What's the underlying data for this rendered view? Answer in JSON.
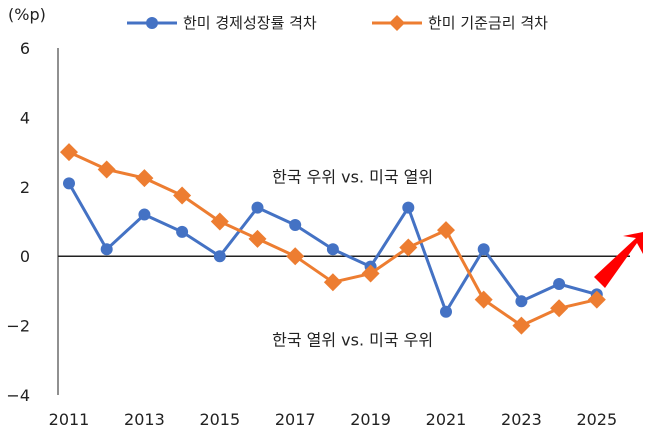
{
  "chart_data": {
    "type": "line",
    "y_unit_label": "(%p)",
    "ylim": [
      -4,
      6
    ],
    "yticks": [
      -4,
      -2,
      0,
      2,
      4,
      6
    ],
    "ytick_labels": [
      "−4",
      "−2",
      "0",
      "2",
      "4",
      "6"
    ],
    "xlim": [
      2011,
      2026
    ],
    "xticks": [
      2011,
      2013,
      2015,
      2017,
      2019,
      2021,
      2023,
      2025
    ],
    "xtick_labels": [
      "2011",
      "2013",
      "2015",
      "2017",
      "2019",
      "2021",
      "2023",
      "2025"
    ],
    "legend_position": "top",
    "series": [
      {
        "name": "한미 경제성장률 격차",
        "color": "#4472C4",
        "marker": "circle",
        "x": [
          2011,
          2012,
          2013,
          2014,
          2015,
          2016,
          2017,
          2018,
          2019,
          2020,
          2021,
          2022,
          2023,
          2024,
          2025
        ],
        "y": [
          2.1,
          0.2,
          1.2,
          0.7,
          0.0,
          1.4,
          0.9,
          0.2,
          -0.3,
          1.4,
          -1.6,
          0.2,
          -1.3,
          -0.8,
          -1.1
        ]
      },
      {
        "name": "한미 기준금리 격차",
        "color": "#ED7D31",
        "marker": "diamond",
        "x": [
          2011,
          2012,
          2013,
          2014,
          2015,
          2016,
          2017,
          2018,
          2019,
          2020,
          2021,
          2022,
          2023,
          2024,
          2025
        ],
        "y": [
          3.0,
          2.5,
          2.25,
          1.75,
          1.0,
          0.5,
          0.0,
          -0.75,
          -0.5,
          0.25,
          0.75,
          -1.25,
          -2.0,
          -1.5,
          -1.25
        ]
      }
    ],
    "annotations": [
      {
        "text": "한국 우위 vs. 미국 열위",
        "x": 2019,
        "y": 2.3
      },
      {
        "text": "한국 열위 vs. 미국 우위",
        "x": 2019,
        "y": -2.4
      }
    ],
    "arrow": {
      "color": "#FF0000",
      "direction": "up-right"
    }
  }
}
